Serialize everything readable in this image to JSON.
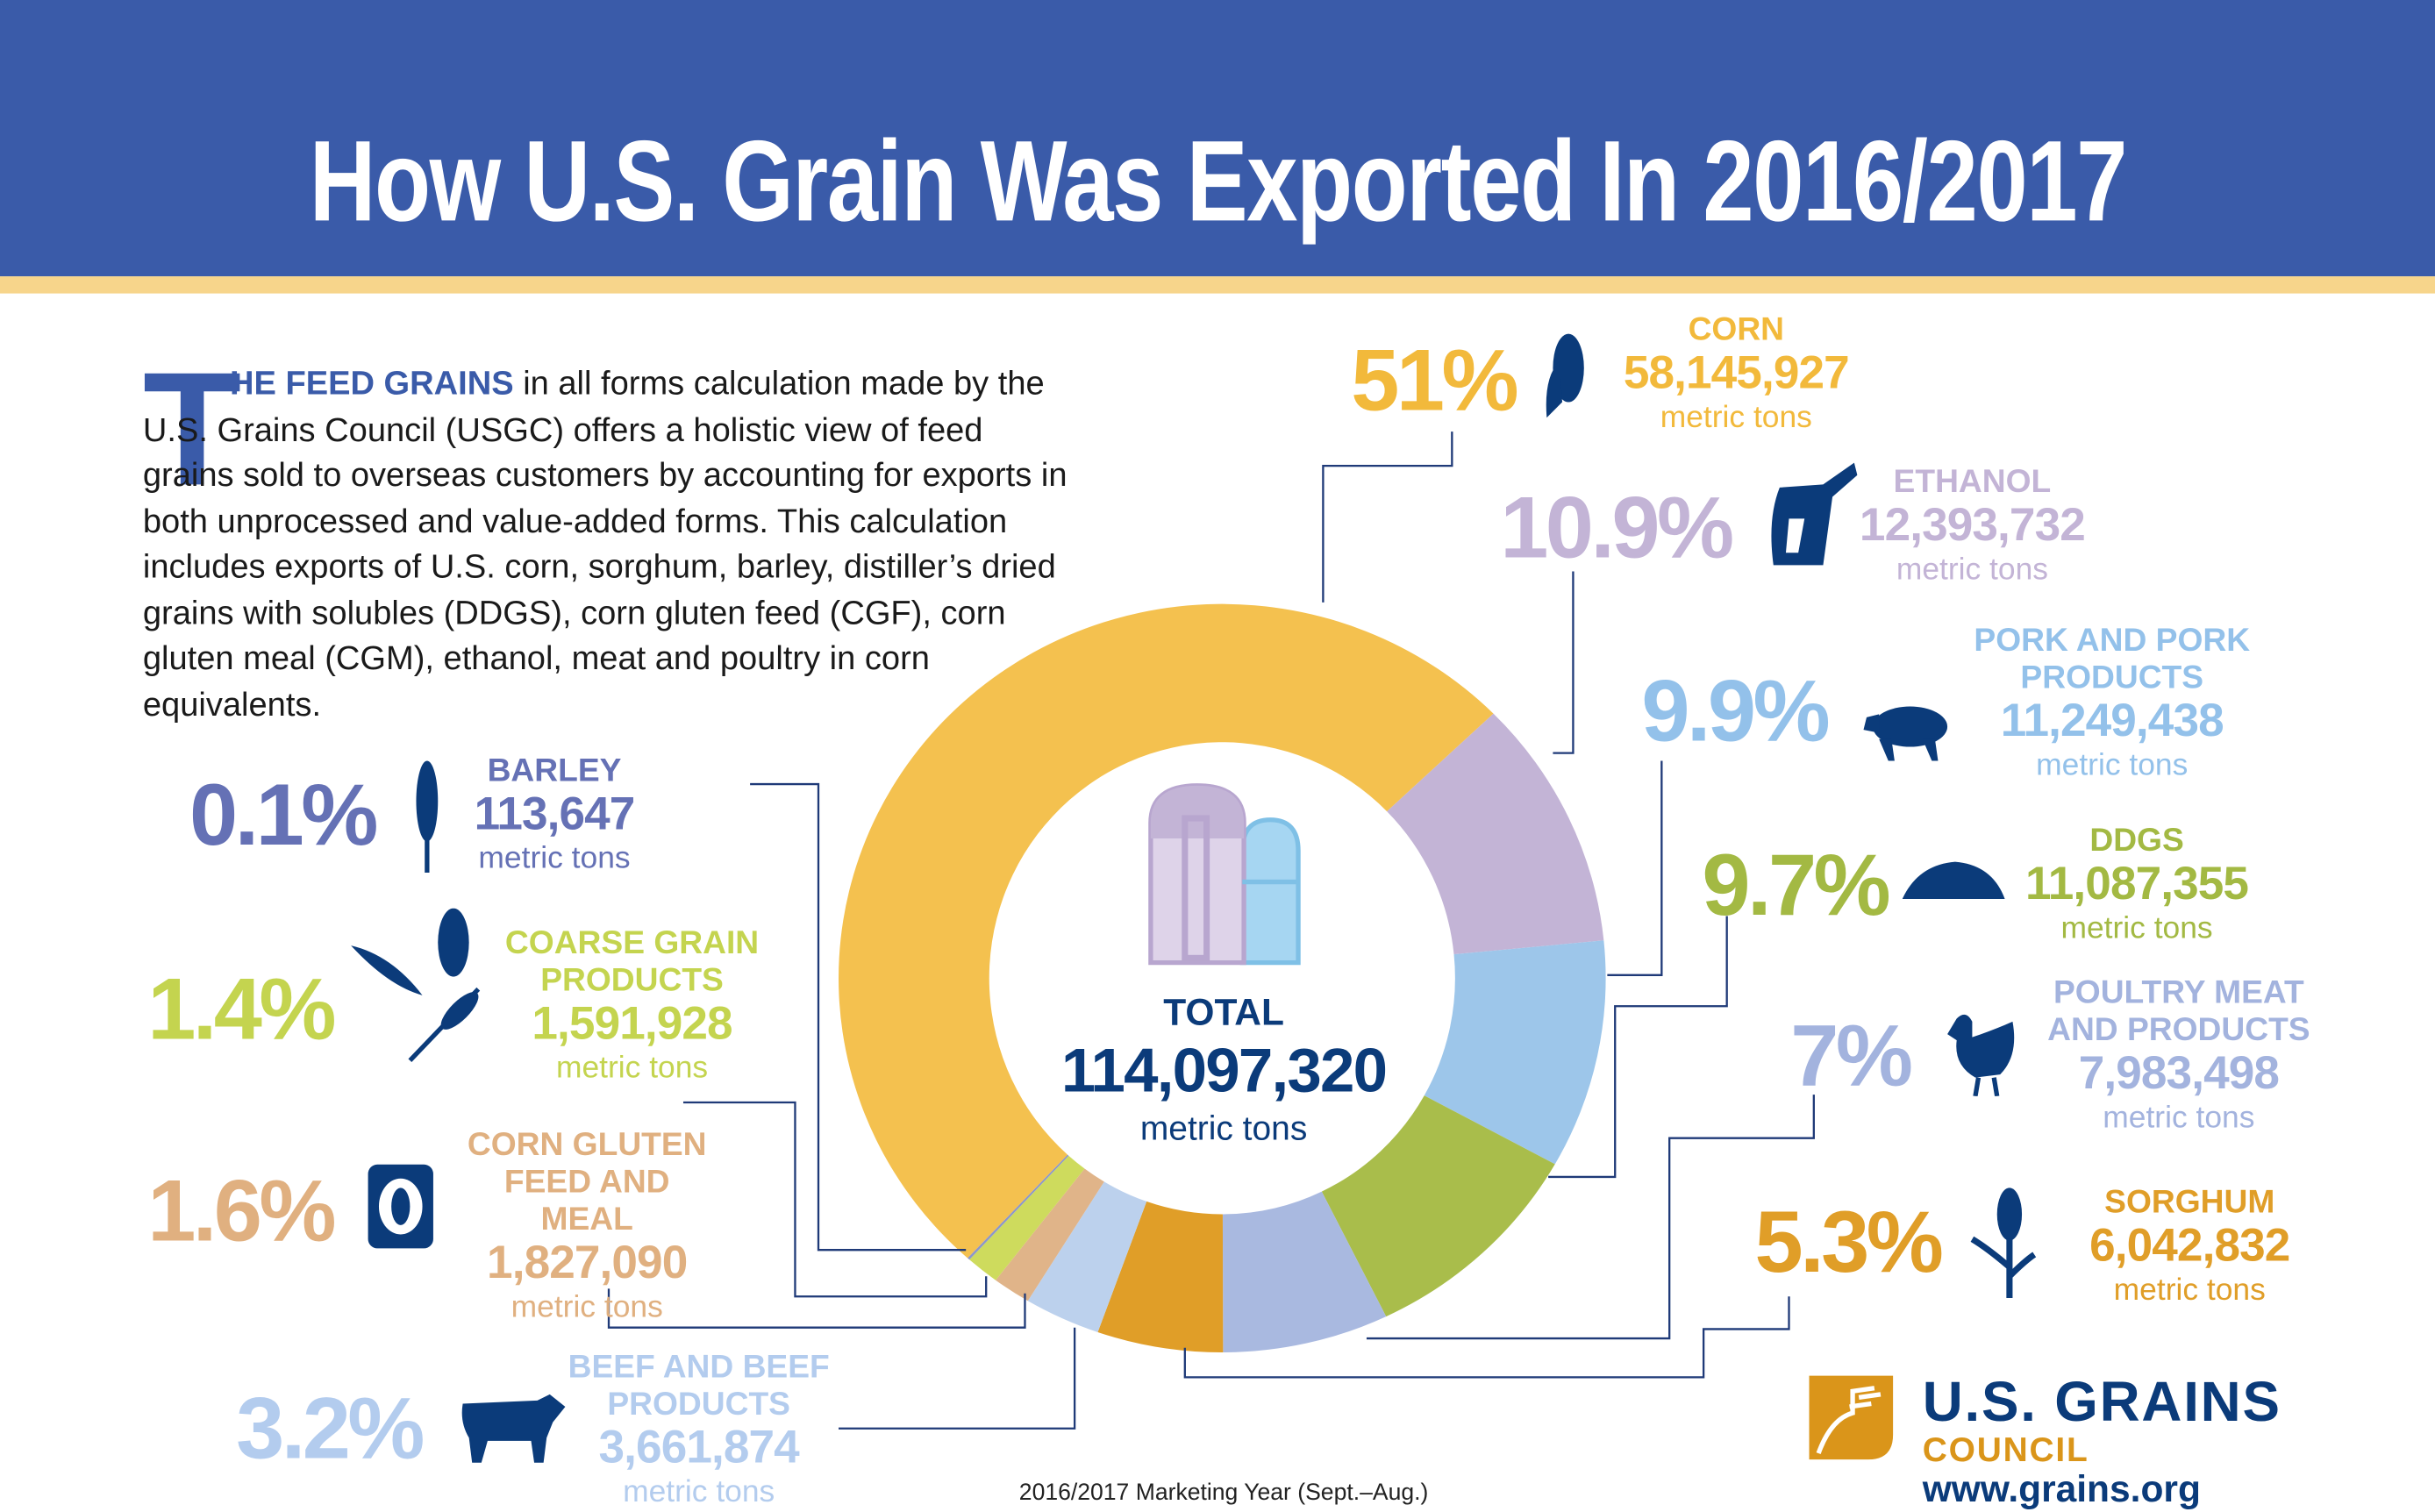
{
  "title": "How U.S. Grain Was Exported In 2016/2017",
  "intro": {
    "drop_cap": "T",
    "lead": "HE FEED GRAINS",
    "body": " in all forms calculation made by the U.S. Grains Council (USGC) offers a holistic view of feed grains sold to overseas customers by accounting for exports in both unprocessed and value-added forms. This calculation includes exports of U.S. corn, sorghum, barley, distiller’s dried grains with solubles (DDGS), corn gluten feed (CGF), corn gluten meal (CGM), ethanol, meat and poultry in corn equivalents."
  },
  "center": {
    "label": "TOTAL",
    "value": "114,097,320",
    "unit": "metric tons"
  },
  "footnote": "2016/2017 Marketing Year (Sept.–Aug.)",
  "logo": {
    "line1": "U.S. GRAINS",
    "line2": "COUNCIL",
    "url": "www.grains.org"
  },
  "colors": {
    "header": "#3A5BA9",
    "stripe": "#F7D58B",
    "navy": "#0B3B7A",
    "logo_gold": "#DA951A"
  },
  "chart_data": {
    "type": "donut",
    "unit": "metric tons",
    "total": 114097320,
    "segments": [
      {
        "name": "CORN",
        "percent": "51%",
        "share": 51,
        "value": "58,145,927",
        "color": "#F4C14F",
        "label_color": "#F2B93B",
        "icon": "corn-icon"
      },
      {
        "name": "ETHANOL",
        "percent": "10.9%",
        "share": 10.9,
        "value": "12,393,732",
        "color": "#C3B4D6",
        "label_color": "#C3B4D6",
        "icon": "fuel-nozzle-icon"
      },
      {
        "name": "PORK AND PORK PRODUCTS",
        "percent": "9.9%",
        "share": 9.9,
        "value": "11,249,438",
        "color": "#9DC6EA",
        "label_color": "#93C1EA",
        "icon": "pig-icon"
      },
      {
        "name": "DDGS",
        "percent": "9.7%",
        "share": 9.7,
        "value": "11,087,355",
        "color": "#A9BD4B",
        "label_color": "#A3B943",
        "icon": "grain-pile-icon"
      },
      {
        "name": "POULTRY MEAT AND PRODUCTS",
        "percent": "7%",
        "share": 7,
        "value": "7,983,498",
        "color": "#A9B9E0",
        "label_color": "#A3B3DE",
        "icon": "chicken-icon"
      },
      {
        "name": "SORGHUM",
        "percent": "5.3%",
        "share": 5.3,
        "value": "6,042,832",
        "color": "#E09E28",
        "label_color": "#E09E28",
        "icon": "sorghum-icon"
      },
      {
        "name": "BEEF AND BEEF PRODUCTS",
        "percent": "3.2%",
        "share": 3.2,
        "value": "3,661,874",
        "color": "#BCD1ED",
        "label_color": "#B3CCEE",
        "icon": "cow-icon"
      },
      {
        "name": "CORN GLUTEN FEED AND MEAL",
        "percent": "1.6%",
        "share": 1.6,
        "value": "1,827,090",
        "color": "#E0B489",
        "label_color": "#E0B080",
        "icon": "feed-bag-icon"
      },
      {
        "name": "COARSE GRAIN PRODUCTS",
        "percent": "1.4%",
        "share": 1.4,
        "value": "1,591,928",
        "color": "#CEDB5D",
        "label_color": "#C4D44F",
        "icon": "grains-icon"
      },
      {
        "name": "BARLEY",
        "percent": "0.1%",
        "share": 0.1,
        "value": "113,647",
        "color": "#8C96CB",
        "label_color": "#6571B5",
        "icon": "barley-icon"
      }
    ]
  }
}
